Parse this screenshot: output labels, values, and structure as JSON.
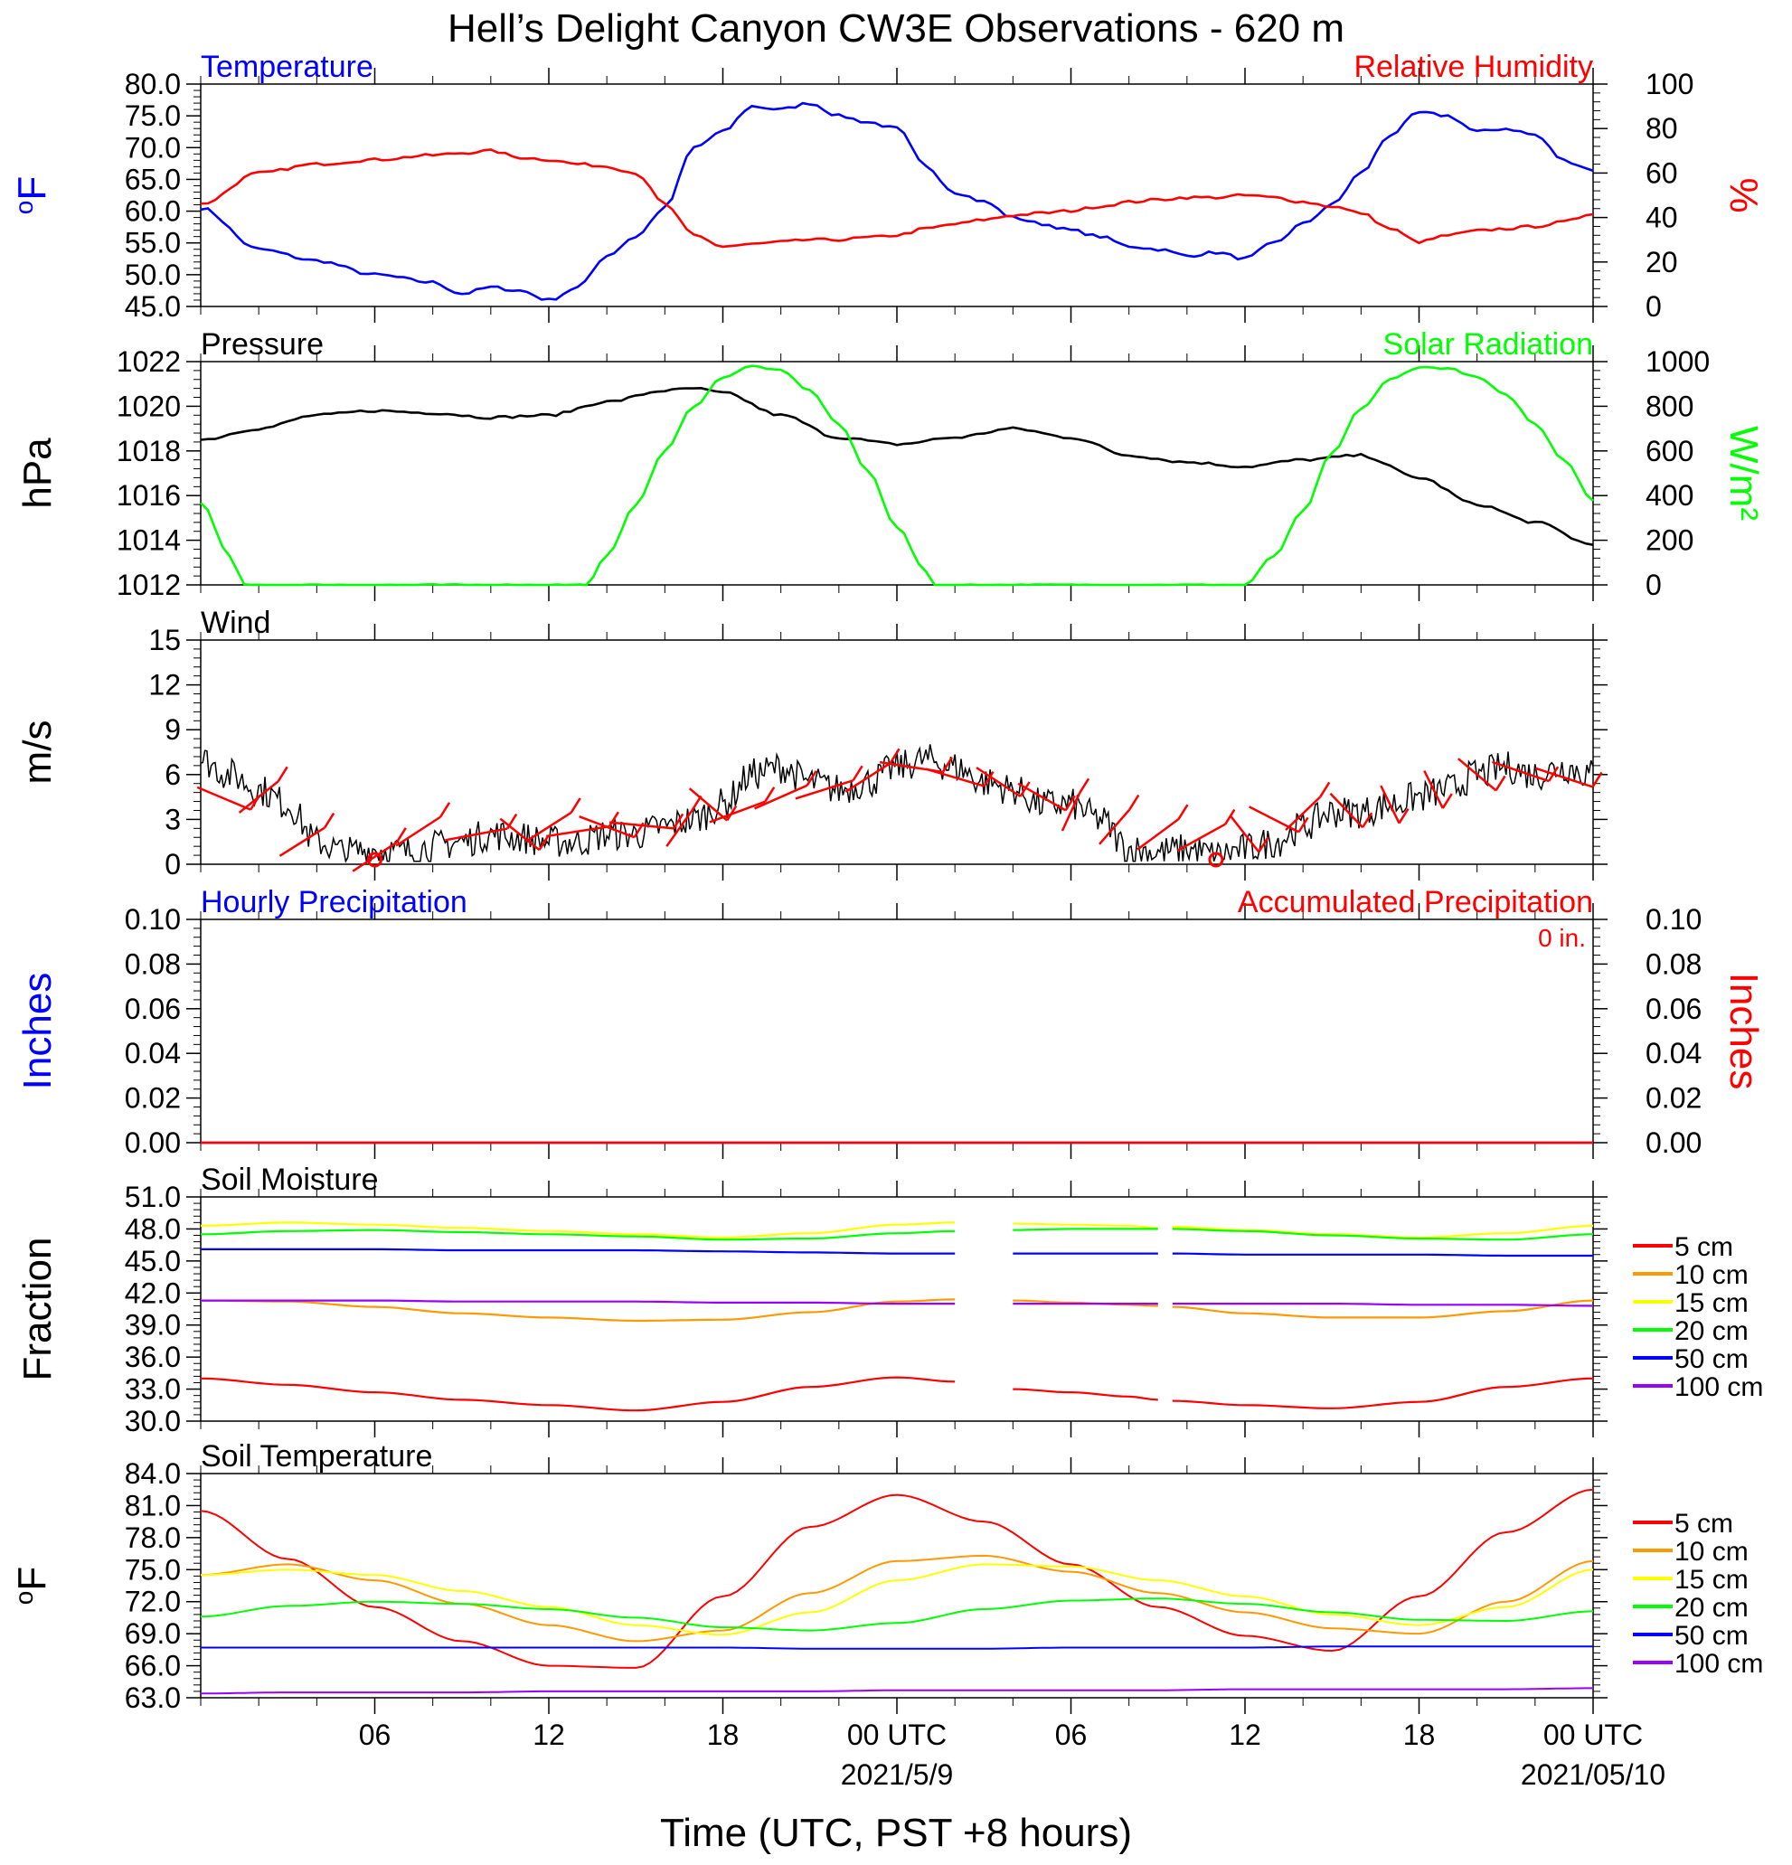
{
  "title": "Hell’s Delight Canyon CW3E Observations - 620 m",
  "x_axis": {
    "label": "Time (UTC, PST +8 hours)",
    "tick_labels": [
      "06",
      "12",
      "18",
      "00 UTC",
      "06",
      "12",
      "18",
      "00 UTC"
    ],
    "date_labels": [
      "2021/5/9",
      "2021/05/10"
    ]
  },
  "colors": {
    "temperature": "#0000ff",
    "humidity": "#ff0000",
    "pressure": "#000000",
    "solar": "#00ff00",
    "wind_speed": "#000000",
    "wind_barb": "#ff0000",
    "depth_5cm": "#ff0000",
    "depth_10cm": "#ff9900",
    "depth_15cm": "#ffff00",
    "depth_20cm": "#00ff00",
    "depth_50cm": "#0000ff",
    "depth_100cm": "#9900ff"
  },
  "chart_data": [
    {
      "id": "temp_rh",
      "type": "line",
      "left_title": "Temperature",
      "right_title": "Relative Humidity",
      "ylabel_left": "°F",
      "ylabel_right": "%",
      "ylim_left": [
        45,
        80
      ],
      "ylim_right": [
        0,
        100
      ],
      "yticks_left": [
        "45.0",
        "50.0",
        "55.0",
        "60.0",
        "65.0",
        "70.0",
        "75.0",
        "80.0"
      ],
      "yticks_right": [
        "0",
        "20",
        "40",
        "60",
        "80",
        "100"
      ],
      "x_hours": [
        1,
        3,
        5,
        7,
        9,
        10,
        11,
        12,
        13,
        14,
        15,
        16,
        17,
        18,
        19,
        20,
        21,
        22,
        23,
        24,
        25,
        26,
        27,
        28,
        29,
        30,
        31,
        32,
        33,
        34,
        35,
        36,
        37,
        38,
        39,
        40,
        41,
        42,
        43,
        44,
        45,
        46,
        47,
        48,
        49
      ],
      "series": [
        {
          "name": "Temperature",
          "axis": "left",
          "color": "#0000ff",
          "values": [
            60.5,
            54.0,
            52.2,
            50.0,
            48.8,
            47.0,
            48.0,
            47.5,
            46.0,
            48.0,
            53.0,
            56.0,
            60.5,
            70.0,
            72.5,
            76.5,
            76.0,
            77.0,
            75.0,
            74.0,
            73.0,
            67.0,
            63.0,
            61.5,
            59.0,
            58.0,
            57.0,
            56.0,
            54.5,
            54.0,
            53.0,
            53.5,
            52.5,
            55.0,
            58.0,
            61.0,
            66.0,
            72.0,
            75.5,
            75.0,
            72.5,
            73.0,
            72.0,
            68.0,
            66.5
          ]
        },
        {
          "name": "Relative Humidity",
          "axis": "right",
          "color": "#ff0000",
          "values": [
            46,
            60,
            64,
            66,
            68,
            69,
            70,
            67,
            66,
            64,
            63,
            60,
            46,
            32,
            27,
            28,
            29,
            30,
            30,
            31,
            32,
            35,
            37,
            39,
            41,
            42,
            43,
            45,
            47,
            48,
            49,
            49,
            50,
            49,
            47,
            45,
            42,
            35,
            29,
            32,
            34,
            35,
            36,
            38,
            42
          ]
        }
      ]
    },
    {
      "id": "pres_solar",
      "type": "line",
      "left_title": "Pressure",
      "right_title": "Solar Radiation",
      "ylabel_left": "hPa",
      "ylabel_right": "W/m²",
      "ylim_left": [
        1012,
        1022
      ],
      "ylim_right": [
        0,
        1000
      ],
      "yticks_left": [
        "1012",
        "1014",
        "1016",
        "1018",
        "1020",
        "1022"
      ],
      "yticks_right": [
        "0",
        "200",
        "400",
        "600",
        "800",
        "1000"
      ],
      "series": [
        {
          "name": "Pressure",
          "axis": "left",
          "color": "#000000",
          "x_hours": [
            1,
            3,
            5,
            7,
            9,
            11,
            13,
            15,
            17,
            18,
            19,
            21,
            23,
            25,
            27,
            29,
            31,
            33,
            35,
            37,
            39,
            41,
            43,
            45,
            47,
            49
          ],
          "values": [
            1018.5,
            1019.0,
            1019.6,
            1019.8,
            1019.7,
            1019.5,
            1019.6,
            1020.2,
            1020.7,
            1020.8,
            1020.6,
            1019.6,
            1018.6,
            1018.3,
            1018.6,
            1019.0,
            1018.6,
            1017.8,
            1017.5,
            1017.3,
            1017.6,
            1017.8,
            1016.8,
            1015.6,
            1014.8,
            1013.8
          ]
        },
        {
          "name": "Solar Radiation",
          "axis": "right",
          "color": "#00ff00",
          "x_hours": [
            1,
            2,
            2.5,
            14.3,
            15,
            16,
            17,
            18,
            19,
            20,
            21,
            22,
            23,
            24,
            25,
            26,
            26.3,
            37,
            38,
            39,
            40,
            41,
            42,
            43,
            44,
            45,
            46,
            47,
            48,
            49
          ],
          "values": [
            370,
            130,
            0,
            0,
            130,
            360,
            600,
            800,
            930,
            980,
            960,
            870,
            720,
            510,
            260,
            60,
            0,
            0,
            130,
            330,
            590,
            790,
            920,
            975,
            970,
            930,
            850,
            720,
            560,
            380
          ]
        }
      ]
    },
    {
      "id": "wind",
      "type": "line",
      "left_title": "Wind",
      "ylabel_left": "m/s",
      "ylim_left": [
        0,
        15
      ],
      "yticks_left": [
        "0",
        "3",
        "6",
        "9",
        "12",
        "15"
      ],
      "series": [
        {
          "name": "Wind",
          "color": "#000000",
          "x_hours": [
            1,
            2,
            3,
            4,
            5,
            6,
            7,
            8,
            9,
            10,
            11,
            12,
            13,
            14,
            15,
            16,
            17,
            18,
            19,
            20,
            21,
            22,
            23,
            24,
            25,
            26,
            27,
            28,
            29,
            30,
            31,
            32,
            33,
            34,
            35,
            36,
            37,
            38,
            39,
            40,
            41,
            42,
            43,
            44,
            45,
            46,
            47,
            48,
            49
          ],
          "values": [
            7.0,
            6.0,
            5.0,
            4.0,
            1.5,
            0.8,
            1.0,
            0.8,
            1.2,
            1.5,
            2.0,
            1.8,
            1.5,
            1.5,
            2.0,
            2.0,
            2.5,
            3.0,
            4.0,
            6.0,
            6.5,
            5.5,
            5.0,
            5.5,
            6.5,
            7.0,
            6.5,
            5.5,
            5.0,
            4.0,
            4.0,
            3.0,
            1.0,
            0.8,
            1.0,
            0.6,
            1.0,
            1.5,
            2.5,
            3.5,
            3.5,
            4.0,
            4.5,
            5.0,
            6.0,
            6.5,
            6.0,
            6.5,
            6.0
          ]
        },
        {
          "name": "Barbs",
          "color": "#ff0000",
          "barbs": [
            [
              1.8,
              4.4
            ],
            [
              3,
              4.5
            ],
            [
              4.5,
              1.5
            ],
            [
              7,
              0.5
            ],
            [
              8.5,
              2.2
            ],
            [
              10.5,
              2
            ],
            [
              12,
              2
            ],
            [
              13,
              2.5
            ],
            [
              14,
              2.2
            ],
            [
              15,
              2.5
            ],
            [
              16.2,
              2.6
            ],
            [
              17.5,
              2.4
            ],
            [
              18.5,
              4.0
            ],
            [
              19.5,
              3.5
            ],
            [
              21,
              4.5
            ],
            [
              22.5,
              5.0
            ],
            [
              24,
              5.8
            ],
            [
              25.5,
              6.5
            ],
            [
              27,
              5.8
            ],
            [
              28.5,
              5.5
            ],
            [
              30,
              4.5
            ],
            [
              31,
              3.5
            ],
            [
              32.5,
              2.5
            ],
            [
              34,
              2.0
            ],
            [
              35.5,
              1.8
            ],
            [
              37,
              2.0
            ],
            [
              38,
              3.0
            ],
            [
              39,
              3.4
            ],
            [
              40.5,
              3.6
            ],
            [
              42,
              4.0
            ],
            [
              43.5,
              5.0
            ],
            [
              45,
              6.0
            ],
            [
              46.5,
              6.2
            ],
            [
              48,
              5.8
            ]
          ],
          "calm_markers": [
            7,
            36
          ]
        }
      ]
    },
    {
      "id": "precip",
      "type": "line",
      "left_title": "Hourly Precipitation",
      "right_title": "Accumulated Precipitation",
      "annotation": "0 in.",
      "ylabel_left": "Inches",
      "ylabel_right": "Inches",
      "ylim_left": [
        0,
        0.1
      ],
      "ylim_right": [
        0,
        0.1
      ],
      "yticks_left": [
        "0.00",
        "0.02",
        "0.04",
        "0.06",
        "0.08",
        "0.10"
      ],
      "yticks_right": [
        "0.00",
        "0.02",
        "0.04",
        "0.06",
        "0.08",
        "0.10"
      ],
      "series": [
        {
          "name": "Hourly Precipitation",
          "color": "#0000ff",
          "x_hours": [
            1,
            49
          ],
          "values": [
            0,
            0
          ]
        },
        {
          "name": "Accumulated Precipitation",
          "color": "#ff0000",
          "x_hours": [
            1,
            49
          ],
          "values": [
            0,
            0
          ]
        }
      ]
    },
    {
      "id": "soil_moist",
      "type": "line",
      "left_title": "Soil Moisture",
      "ylabel_left": "Fraction",
      "ylim_left": [
        30,
        51
      ],
      "yticks_left": [
        "30.0",
        "33.0",
        "36.0",
        "39.0",
        "42.0",
        "45.0",
        "48.0",
        "51.0"
      ],
      "legend": [
        "5 cm",
        "10 cm",
        "15 cm",
        "20 cm",
        "50 cm",
        "100 cm"
      ],
      "x_hours": [
        1,
        4,
        7,
        10,
        13,
        16,
        19,
        22,
        25,
        27,
        29,
        31,
        33,
        34,
        34.5,
        37,
        40,
        43,
        46,
        49
      ],
      "series": [
        {
          "name": "5 cm",
          "color": "#ff0000",
          "values": [
            34.0,
            33.4,
            32.7,
            32.0,
            31.5,
            31.0,
            31.8,
            33.2,
            34.1,
            33.7,
            33.0,
            32.7,
            32.3,
            32.0,
            31.9,
            31.5,
            31.2,
            31.8,
            33.2,
            34.0
          ]
        },
        {
          "name": "10 cm",
          "color": "#ff9900",
          "values": [
            41.3,
            41.2,
            40.7,
            40.1,
            39.7,
            39.4,
            39.5,
            40.2,
            41.2,
            41.4,
            41.3,
            41.1,
            40.9,
            40.8,
            40.7,
            40.1,
            39.7,
            39.7,
            40.3,
            41.3
          ]
        },
        {
          "name": "15 cm",
          "color": "#ffff00",
          "values": [
            48.3,
            48.6,
            48.4,
            48.1,
            47.8,
            47.5,
            47.2,
            47.6,
            48.4,
            48.6,
            48.5,
            48.4,
            48.3,
            48.1,
            48.2,
            47.9,
            47.5,
            47.2,
            47.6,
            48.3
          ]
        },
        {
          "name": "20 cm",
          "color": "#00ff00",
          "values": [
            47.5,
            47.8,
            47.9,
            47.7,
            47.5,
            47.3,
            47.0,
            47.1,
            47.6,
            47.8,
            47.9,
            48.0,
            48.0,
            48.0,
            48.0,
            47.8,
            47.4,
            47.1,
            47.0,
            47.5
          ]
        },
        {
          "name": "50 cm",
          "color": "#0000ff",
          "values": [
            46.1,
            46.1,
            46.1,
            46.0,
            46.0,
            46.0,
            45.9,
            45.8,
            45.7,
            45.7,
            45.7,
            45.7,
            45.7,
            45.7,
            45.7,
            45.6,
            45.6,
            45.6,
            45.5,
            45.5
          ]
        },
        {
          "name": "100 cm",
          "color": "#9900ff",
          "values": [
            41.3,
            41.3,
            41.3,
            41.2,
            41.2,
            41.2,
            41.1,
            41.1,
            41.0,
            41.0,
            41.0,
            41.0,
            41.0,
            41.0,
            41.0,
            41.0,
            41.0,
            40.9,
            40.9,
            40.8
          ]
        }
      ]
    },
    {
      "id": "soil_temp",
      "type": "line",
      "left_title": "Soil Temperature",
      "ylabel_left": "°F",
      "ylim_left": [
        63,
        84
      ],
      "yticks_left": [
        "63.0",
        "66.0",
        "69.0",
        "72.0",
        "75.0",
        "78.0",
        "81.0",
        "84.0"
      ],
      "legend": [
        "5 cm",
        "10 cm",
        "15 cm",
        "20 cm",
        "50 cm",
        "100 cm"
      ],
      "x_hours": [
        1,
        4,
        7,
        10,
        13,
        16,
        19,
        22,
        25,
        28,
        31,
        34,
        37,
        40,
        43,
        46,
        49
      ],
      "series": [
        {
          "name": "5 cm",
          "color": "#ff0000",
          "values": [
            80.5,
            76.0,
            71.5,
            68.3,
            66.0,
            65.8,
            72.5,
            79.0,
            82.0,
            79.5,
            75.5,
            71.5,
            68.8,
            67.4,
            72.5,
            78.5,
            82.5
          ]
        },
        {
          "name": "10 cm",
          "color": "#ff9900",
          "values": [
            74.5,
            75.5,
            74.0,
            71.8,
            69.8,
            68.3,
            69.3,
            72.8,
            75.8,
            76.3,
            74.8,
            72.8,
            71.0,
            69.5,
            69.0,
            72.0,
            75.8
          ]
        },
        {
          "name": "15 cm",
          "color": "#ffff00",
          "values": [
            74.5,
            75.0,
            74.5,
            73.0,
            71.5,
            69.8,
            68.9,
            71.0,
            74.0,
            75.5,
            75.3,
            74.0,
            72.5,
            70.8,
            69.8,
            71.5,
            75.0
          ]
        },
        {
          "name": "20 cm",
          "color": "#00ff00",
          "values": [
            70.6,
            71.6,
            72.0,
            71.8,
            71.3,
            70.5,
            69.6,
            69.3,
            70.0,
            71.3,
            72.1,
            72.3,
            71.8,
            71.0,
            70.3,
            70.2,
            71.1
          ]
        },
        {
          "name": "50 cm",
          "color": "#0000ff",
          "values": [
            67.7,
            67.7,
            67.7,
            67.7,
            67.7,
            67.7,
            67.7,
            67.6,
            67.6,
            67.6,
            67.7,
            67.7,
            67.7,
            67.8,
            67.8,
            67.8,
            67.8
          ]
        },
        {
          "name": "100 cm",
          "color": "#9900ff",
          "values": [
            63.4,
            63.5,
            63.5,
            63.5,
            63.6,
            63.6,
            63.6,
            63.6,
            63.7,
            63.7,
            63.7,
            63.7,
            63.8,
            63.8,
            63.8,
            63.8,
            63.9
          ]
        }
      ]
    }
  ]
}
